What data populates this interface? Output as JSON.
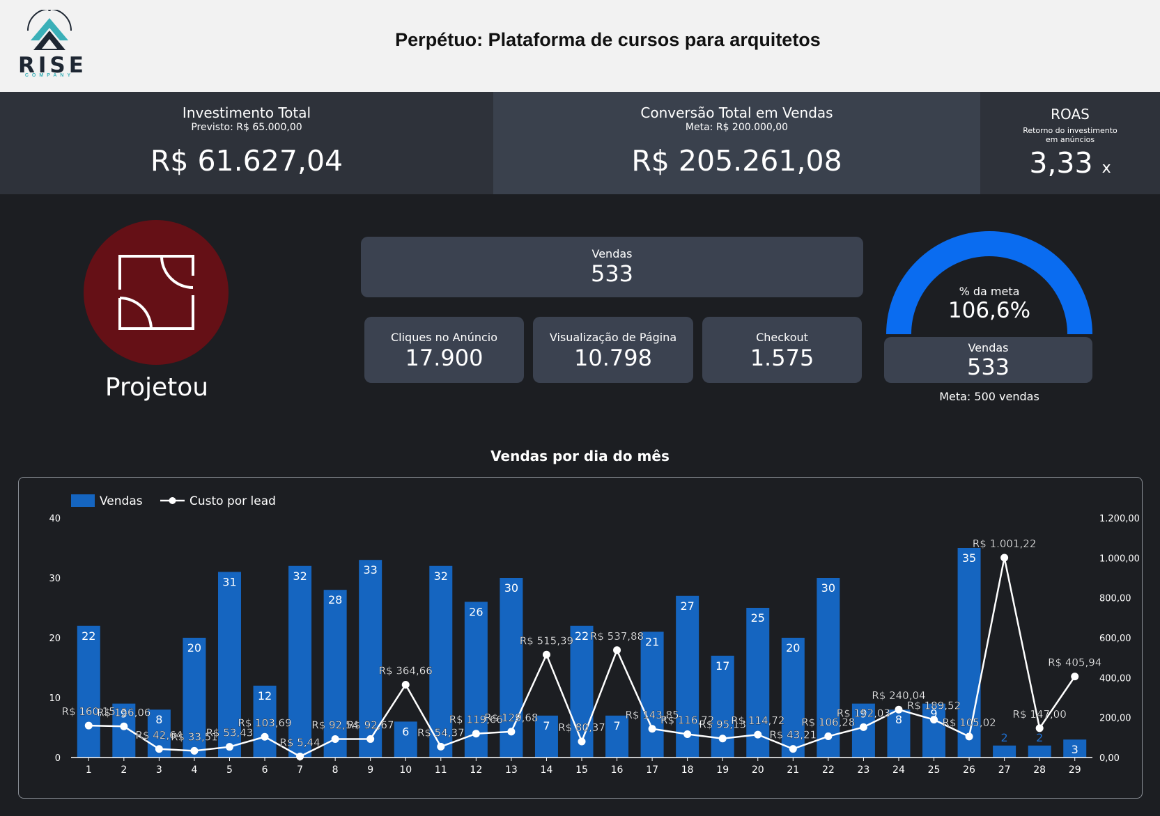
{
  "header": {
    "logo_text": "RISE",
    "logo_subtext": "COMPANY",
    "title": "Perpétuo: Plataforma de cursos para arquitetos"
  },
  "kpis": {
    "investment": {
      "title": "Investimento Total",
      "subtitle": "Previsto: R$ 65.000,00",
      "value": "R$ 61.627,04"
    },
    "conversion": {
      "title": "Conversão Total em Vendas",
      "subtitle": "Meta: R$ 200.000,00",
      "value": "R$ 205.261,08"
    },
    "roas": {
      "title": "ROAS",
      "subtitle_line1": "Retorno do investimento",
      "subtitle_line2": "em anúncios",
      "value": "3,33",
      "suffix": "x"
    }
  },
  "brand": {
    "name": "Projetou",
    "icon": "floor-plan-icon",
    "circle_color": "#651016"
  },
  "funnel": {
    "sales": {
      "label": "Vendas",
      "value": "533"
    },
    "ad_clicks": {
      "label": "Cliques no Anúncio",
      "value": "17.900"
    },
    "page_views": {
      "label": "Visualização de Página",
      "value": "10.798"
    },
    "checkout": {
      "label": "Checkout",
      "value": "1.575"
    }
  },
  "goal": {
    "label": "% da meta",
    "value": "106,6%",
    "fraction": 1.066,
    "sales_label": "Vendas",
    "sales_value": "533",
    "meta_text": "Meta: 500 vendas"
  },
  "colors": {
    "background": "#1c1e22",
    "header": "#f2f2f2",
    "band_dark": "#2e323a",
    "band_light": "#3a414d",
    "card": "#3b4250",
    "bar": "#1565c0",
    "gauge": "#0a6cf0",
    "line": "#ffffff"
  },
  "chart_data": {
    "type": "bar",
    "title": "Vendas por dia do mês",
    "categories": [
      "1",
      "2",
      "3",
      "4",
      "5",
      "6",
      "7",
      "8",
      "9",
      "10",
      "11",
      "12",
      "13",
      "14",
      "15",
      "16",
      "17",
      "18",
      "19",
      "20",
      "21",
      "22",
      "23",
      "24",
      "25",
      "26",
      "27",
      "28",
      "29"
    ],
    "series": [
      {
        "name": "Vendas",
        "type": "bar",
        "axis": "left",
        "values": [
          22,
          9,
          8,
          20,
          31,
          12,
          32,
          28,
          33,
          6,
          32,
          26,
          30,
          7,
          22,
          7,
          21,
          27,
          17,
          25,
          20,
          30,
          9,
          8,
          9,
          35,
          2,
          2,
          3
        ],
        "labels": [
          "22",
          "9",
          "8",
          "20",
          "31",
          "12",
          "32",
          "28",
          "33",
          "6",
          "32",
          "26",
          "30",
          "7",
          "22",
          "7",
          "21",
          "27",
          "17",
          "25",
          "20",
          "30",
          "9",
          "8",
          "9",
          "35",
          "2",
          "2",
          "3"
        ]
      },
      {
        "name": "Custo por lead",
        "type": "line",
        "axis": "right",
        "values": [
          160.15,
          156.06,
          42.64,
          33.51,
          53.43,
          103.69,
          5.44,
          92.54,
          92.67,
          364.66,
          54.37,
          119.66,
          129.68,
          515.39,
          80.37,
          537.88,
          143.85,
          116.72,
          95.13,
          114.72,
          43.21,
          106.28,
          152.03,
          240.04,
          189.52,
          105.02,
          1001.22,
          147.0,
          405.94
        ],
        "labels": [
          "R$ 160,15",
          "R$ 156,06",
          "R$ 42,64",
          "R$ 33,51",
          "R$ 53,43",
          "R$ 103,69",
          "R$ 5,44",
          "R$ 92,54",
          "R$ 92,67",
          "R$ 364,66",
          "R$ 54,37",
          "R$ 119,66",
          "R$ 129,68",
          "R$ 515,39",
          "R$ 80,37",
          "R$ 537,88",
          "R$ 143,85",
          "R$ 116,72",
          "R$ 95,13",
          "R$ 114,72",
          "R$ 43,21",
          "R$ 106,28",
          "R$ 152,03",
          "R$ 240,04",
          "R$ 189,52",
          "R$ 105,02",
          "R$ 1.001,22",
          "R$ 147,00",
          "R$ 405,94"
        ]
      }
    ],
    "y_left": {
      "range": [
        0,
        40
      ],
      "ticks": [
        "0",
        "10",
        "20",
        "30",
        "40"
      ]
    },
    "y_right": {
      "range": [
        0,
        1200
      ],
      "ticks": [
        "0,00",
        "200,00",
        "400,00",
        "600,00",
        "800,00",
        "1.000,00",
        "1.200,00"
      ]
    },
    "legend": {
      "position": "top-left",
      "items": [
        "Vendas",
        "Custo por lead"
      ]
    },
    "grid": false
  }
}
